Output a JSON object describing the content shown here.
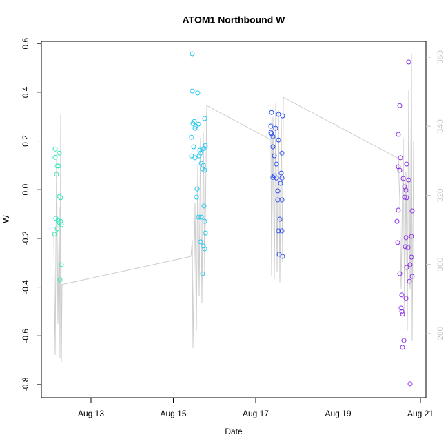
{
  "chart_data": {
    "type": "scatter",
    "title": "ATOM1 Northbound W",
    "x_label": "Date",
    "y_label": "W",
    "xlim": [
      11.795,
      21.134
    ],
    "xticks": [
      {
        "value": 13,
        "label": "Aug 13"
      },
      {
        "value": 15,
        "label": "Aug 15"
      },
      {
        "value": 17,
        "label": "Aug 17"
      },
      {
        "value": 19,
        "label": "Aug 19"
      },
      {
        "value": 21,
        "label": "Aug 21"
      }
    ],
    "ylim": [
      -0.854,
      0.609
    ],
    "yticks": [
      -0.8,
      -0.6,
      -0.4,
      -0.2,
      {
        "value": 0,
        "label": "0.0"
      },
      0.2,
      0.4,
      0.6
    ],
    "y2lim": [
      261.4,
      364.6
    ],
    "y2ticks": [
      280,
      300,
      320,
      340,
      360
    ],
    "series": [
      {
        "color": "#33e6b8",
        "x": [
          12.13,
          12.23,
          12.13,
          12.18,
          12.213,
          12.163,
          12.23,
          12.263,
          12.146,
          12.18,
          12.197,
          12.263,
          12.23,
          12.28,
          12.113,
          12.28,
          12.247
        ],
        "values": [
          0.167,
          0.15,
          0.133,
          0.097,
          0.097,
          0.063,
          -0.028,
          -0.033,
          -0.118,
          -0.161,
          -0.127,
          -0.13,
          -0.135,
          -0.144,
          -0.183,
          -0.308,
          -0.37
        ]
      },
      {
        "color": "#22c8ee",
        "x": [
          15.46,
          15.46,
          15.594,
          15.51,
          15.477,
          15.544,
          15.611,
          15.527,
          15.762,
          15.443,
          15.778,
          15.494,
          15.644,
          15.711,
          15.661,
          15.745,
          15.628,
          15.443,
          15.527,
          15.678,
          15.728,
          15.711,
          15.762,
          15.577,
          15.561,
          15.745,
          15.611,
          15.678,
          15.762,
          15.778,
          15.661,
          15.728,
          15.762,
          15.711
        ],
        "values": [
          0.558,
          0.405,
          0.397,
          0.28,
          0.272,
          0.261,
          0.269,
          0.252,
          0.292,
          0.215,
          0.181,
          0.176,
          0.162,
          0.167,
          0.15,
          0.17,
          0.139,
          0.139,
          0.131,
          0.108,
          0.099,
          0.085,
          0.08,
          0.003,
          -0.031,
          -0.067,
          -0.113,
          -0.113,
          -0.13,
          -0.178,
          -0.214,
          -0.231,
          -0.243,
          -0.345
        ]
      },
      {
        "color": "#2e4ef0",
        "x": [
          17.385,
          17.653,
          17.552,
          17.368,
          17.485,
          17.385,
          17.418,
          17.368,
          17.552,
          17.418,
          17.636,
          17.452,
          17.502,
          17.619,
          17.452,
          17.418,
          17.502,
          17.636,
          17.536,
          17.603,
          17.536,
          17.636,
          17.586,
          17.552,
          17.636,
          17.569,
          17.653
        ],
        "values": [
          0.317,
          0.303,
          0.309,
          0.261,
          0.252,
          0.23,
          0.218,
          0.235,
          0.204,
          0.176,
          0.15,
          0.139,
          0.105,
          0.068,
          0.057,
          0.051,
          0.048,
          0.048,
          -0.005,
          0.026,
          -0.042,
          -0.042,
          -0.121,
          -0.169,
          -0.169,
          -0.265,
          -0.274
        ]
      },
      {
        "color": "#8a30e8",
        "x": [
          20.716,
          20.498,
          20.464,
          20.515,
          20.464,
          20.498,
          20.665,
          20.582,
          20.615,
          20.649,
          20.615,
          20.665,
          20.716,
          20.799,
          20.464,
          20.431,
          20.782,
          20.649,
          20.448,
          20.632,
          20.699,
          20.782,
          20.749,
          20.665,
          20.498,
          20.799,
          20.732,
          20.548,
          20.649,
          20.531,
          20.548,
          20.565,
          20.598,
          20.565,
          20.749
        ],
        "values": [
          0.524,
          0.345,
          0.227,
          0.131,
          0.094,
          0.08,
          0.105,
          0.046,
          0.012,
          -0.002,
          -0.031,
          -0.033,
          0.04,
          -0.087,
          -0.084,
          -0.13,
          -0.192,
          -0.197,
          -0.217,
          -0.234,
          -0.237,
          -0.277,
          -0.308,
          -0.319,
          -0.345,
          -0.356,
          -0.376,
          -0.432,
          -0.446,
          -0.486,
          -0.5,
          -0.511,
          -0.619,
          -0.647,
          -0.797
        ]
      },
      {
        "type": "line",
        "axis": "y2",
        "color": "#cccccc",
        "x": [
          12.096,
          12.13,
          12.163,
          12.197,
          12.23,
          12.247,
          12.263,
          12.28,
          12.297,
          15.427,
          15.46,
          15.477,
          15.527,
          15.56,
          15.594,
          15.627,
          15.66,
          15.694,
          15.728,
          15.761,
          15.812,
          17.368,
          17.385,
          17.418,
          17.452,
          17.485,
          17.519,
          17.552,
          17.586,
          17.619,
          17.653,
          17.669,
          20.464,
          20.498,
          20.531,
          20.582,
          20.615,
          20.649,
          20.682,
          20.716,
          20.749,
          20.782,
          20.799,
          20.833
        ],
        "values": [
          308.7,
          273.8,
          330.7,
          282.8,
          316.7,
          272.8,
          343.6,
          271.8,
          294.2,
          302.3,
          307.1,
          275.8,
          317.7,
          280.8,
          328.7,
          290.8,
          336.7,
          288.8,
          338.6,
          296.8,
          346.0,
          336.1,
          296.8,
          342.6,
          295.8,
          346.6,
          297.8,
          344.6,
          294.8,
          342.6,
          300.7,
          348.4,
          330.7,
          318.7,
          292.8,
          336.7,
          284.8,
          326.7,
          280.8,
          350.6,
          292.8,
          361.0,
          277.8,
          335.7
        ]
      }
    ]
  }
}
